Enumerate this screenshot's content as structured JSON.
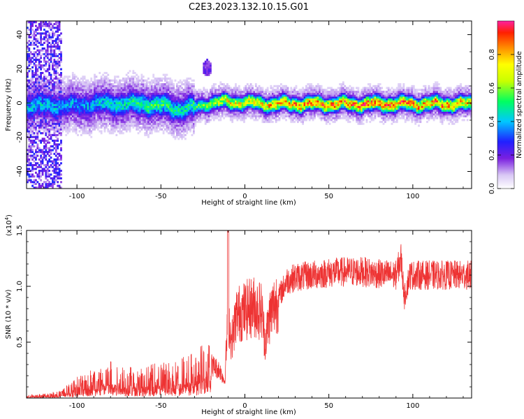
{
  "title": "C2E3.2023.132.10.15.G01",
  "chart_data": [
    {
      "type": "heatmap",
      "xlabel": "Height of straight line (km)",
      "ylabel": "Frequency (Hz)",
      "xlim": [
        -130,
        135
      ],
      "ylim": [
        -50,
        48
      ],
      "xticks": [
        "-100",
        "-50",
        "0",
        "50",
        "100"
      ],
      "xtick_values": [
        -100,
        -50,
        0,
        50,
        100
      ],
      "yticks": [
        "-40",
        "-20",
        "0",
        "20",
        "40"
      ],
      "ytick_values": [
        -40,
        -20,
        0,
        20,
        40
      ],
      "colorbar": {
        "label": "Normalized spectral amplitude",
        "range": [
          0,
          1
        ],
        "ticks": [
          "0.0",
          "0.2",
          "0.4",
          "0.6",
          "0.8"
        ],
        "tick_values": [
          0.0,
          0.2,
          0.4,
          0.6,
          0.8
        ],
        "colormap": "rainbow (violet-blue-cyan-green-yellow-orange-red-magenta)"
      },
      "ridge": [
        {
          "x": -110,
          "y": -2,
          "amp": 0.4
        },
        {
          "x": -100,
          "y": -2,
          "amp": 0.35
        },
        {
          "x": -90,
          "y": -1,
          "amp": 0.4
        },
        {
          "x": -80,
          "y": -1,
          "amp": 0.45
        },
        {
          "x": -70,
          "y": -1,
          "amp": 0.45
        },
        {
          "x": -60,
          "y": -1,
          "amp": 0.5
        },
        {
          "x": -50,
          "y": -2,
          "amp": 0.5
        },
        {
          "x": -40,
          "y": -4,
          "amp": 0.45
        },
        {
          "x": -30,
          "y": -3,
          "amp": 0.5
        },
        {
          "x": -20,
          "y": 0,
          "amp": 0.6
        },
        {
          "x": -10,
          "y": 0,
          "amp": 0.7
        },
        {
          "x": 0,
          "y": 0,
          "amp": 0.7
        },
        {
          "x": 10,
          "y": -1,
          "amp": 0.75
        },
        {
          "x": 20,
          "y": -1,
          "amp": 0.75
        },
        {
          "x": 30,
          "y": -1,
          "amp": 0.8
        },
        {
          "x": 40,
          "y": -1,
          "amp": 0.8
        },
        {
          "x": 50,
          "y": -1,
          "amp": 0.8
        },
        {
          "x": 60,
          "y": -1,
          "amp": 0.8
        },
        {
          "x": 70,
          "y": -1,
          "amp": 0.85
        },
        {
          "x": 80,
          "y": -1,
          "amp": 0.85
        },
        {
          "x": 90,
          "y": -1,
          "amp": 0.85
        },
        {
          "x": 100,
          "y": -1,
          "amp": 0.8
        },
        {
          "x": 110,
          "y": -1,
          "amp": 0.8
        },
        {
          "x": 120,
          "y": -1,
          "amp": 0.8
        },
        {
          "x": 130,
          "y": -1,
          "amp": 0.75
        }
      ],
      "features": [
        {
          "desc": "broadband noise region",
          "x_range": [
            -130,
            -110
          ],
          "y_range": [
            -50,
            48
          ],
          "amp": 0.15
        },
        {
          "desc": "isolated feature",
          "x": -23,
          "y": 20,
          "amp": 0.2
        }
      ]
    },
    {
      "type": "line",
      "xlabel": "Height of straight line (km)",
      "ylabel": "SNR (10 * v/v)",
      "y_multiplier_label": "(x10",
      "y_multiplier_exp": "4",
      "xlim": [
        -130,
        135
      ],
      "ylim": [
        0,
        15000
      ],
      "xticks": [
        "-100",
        "-50",
        "0",
        "50",
        "100"
      ],
      "xtick_values": [
        -100,
        -50,
        0,
        50,
        100
      ],
      "yticks": [
        "0.5",
        "1.0",
        "1.5"
      ],
      "ytick_values": [
        5000,
        10000,
        15000
      ],
      "color": "#ee3333",
      "series": [
        {
          "x": [
            -130,
            -120,
            -110,
            -100,
            -90,
            -80,
            -70,
            -60,
            -50,
            -40,
            -30,
            -20,
            -15,
            -12,
            -10,
            -8,
            -5,
            0,
            5,
            10,
            12,
            15,
            20,
            25,
            30,
            40,
            50,
            60,
            70,
            80,
            90,
            93,
            95,
            98,
            100,
            110,
            120,
            130,
            135
          ],
          "y": [
            150,
            200,
            350,
            1000,
            1500,
            1800,
            1500,
            1500,
            1700,
            1800,
            2200,
            3000,
            2500,
            1500,
            7500,
            5000,
            7500,
            7800,
            8200,
            7800,
            5000,
            7500,
            9000,
            10500,
            10800,
            11000,
            11200,
            11300,
            11300,
            11100,
            11000,
            12500,
            9000,
            11000,
            11000,
            11000,
            11000,
            11000,
            11000
          ]
        }
      ],
      "grid": false
    }
  ]
}
